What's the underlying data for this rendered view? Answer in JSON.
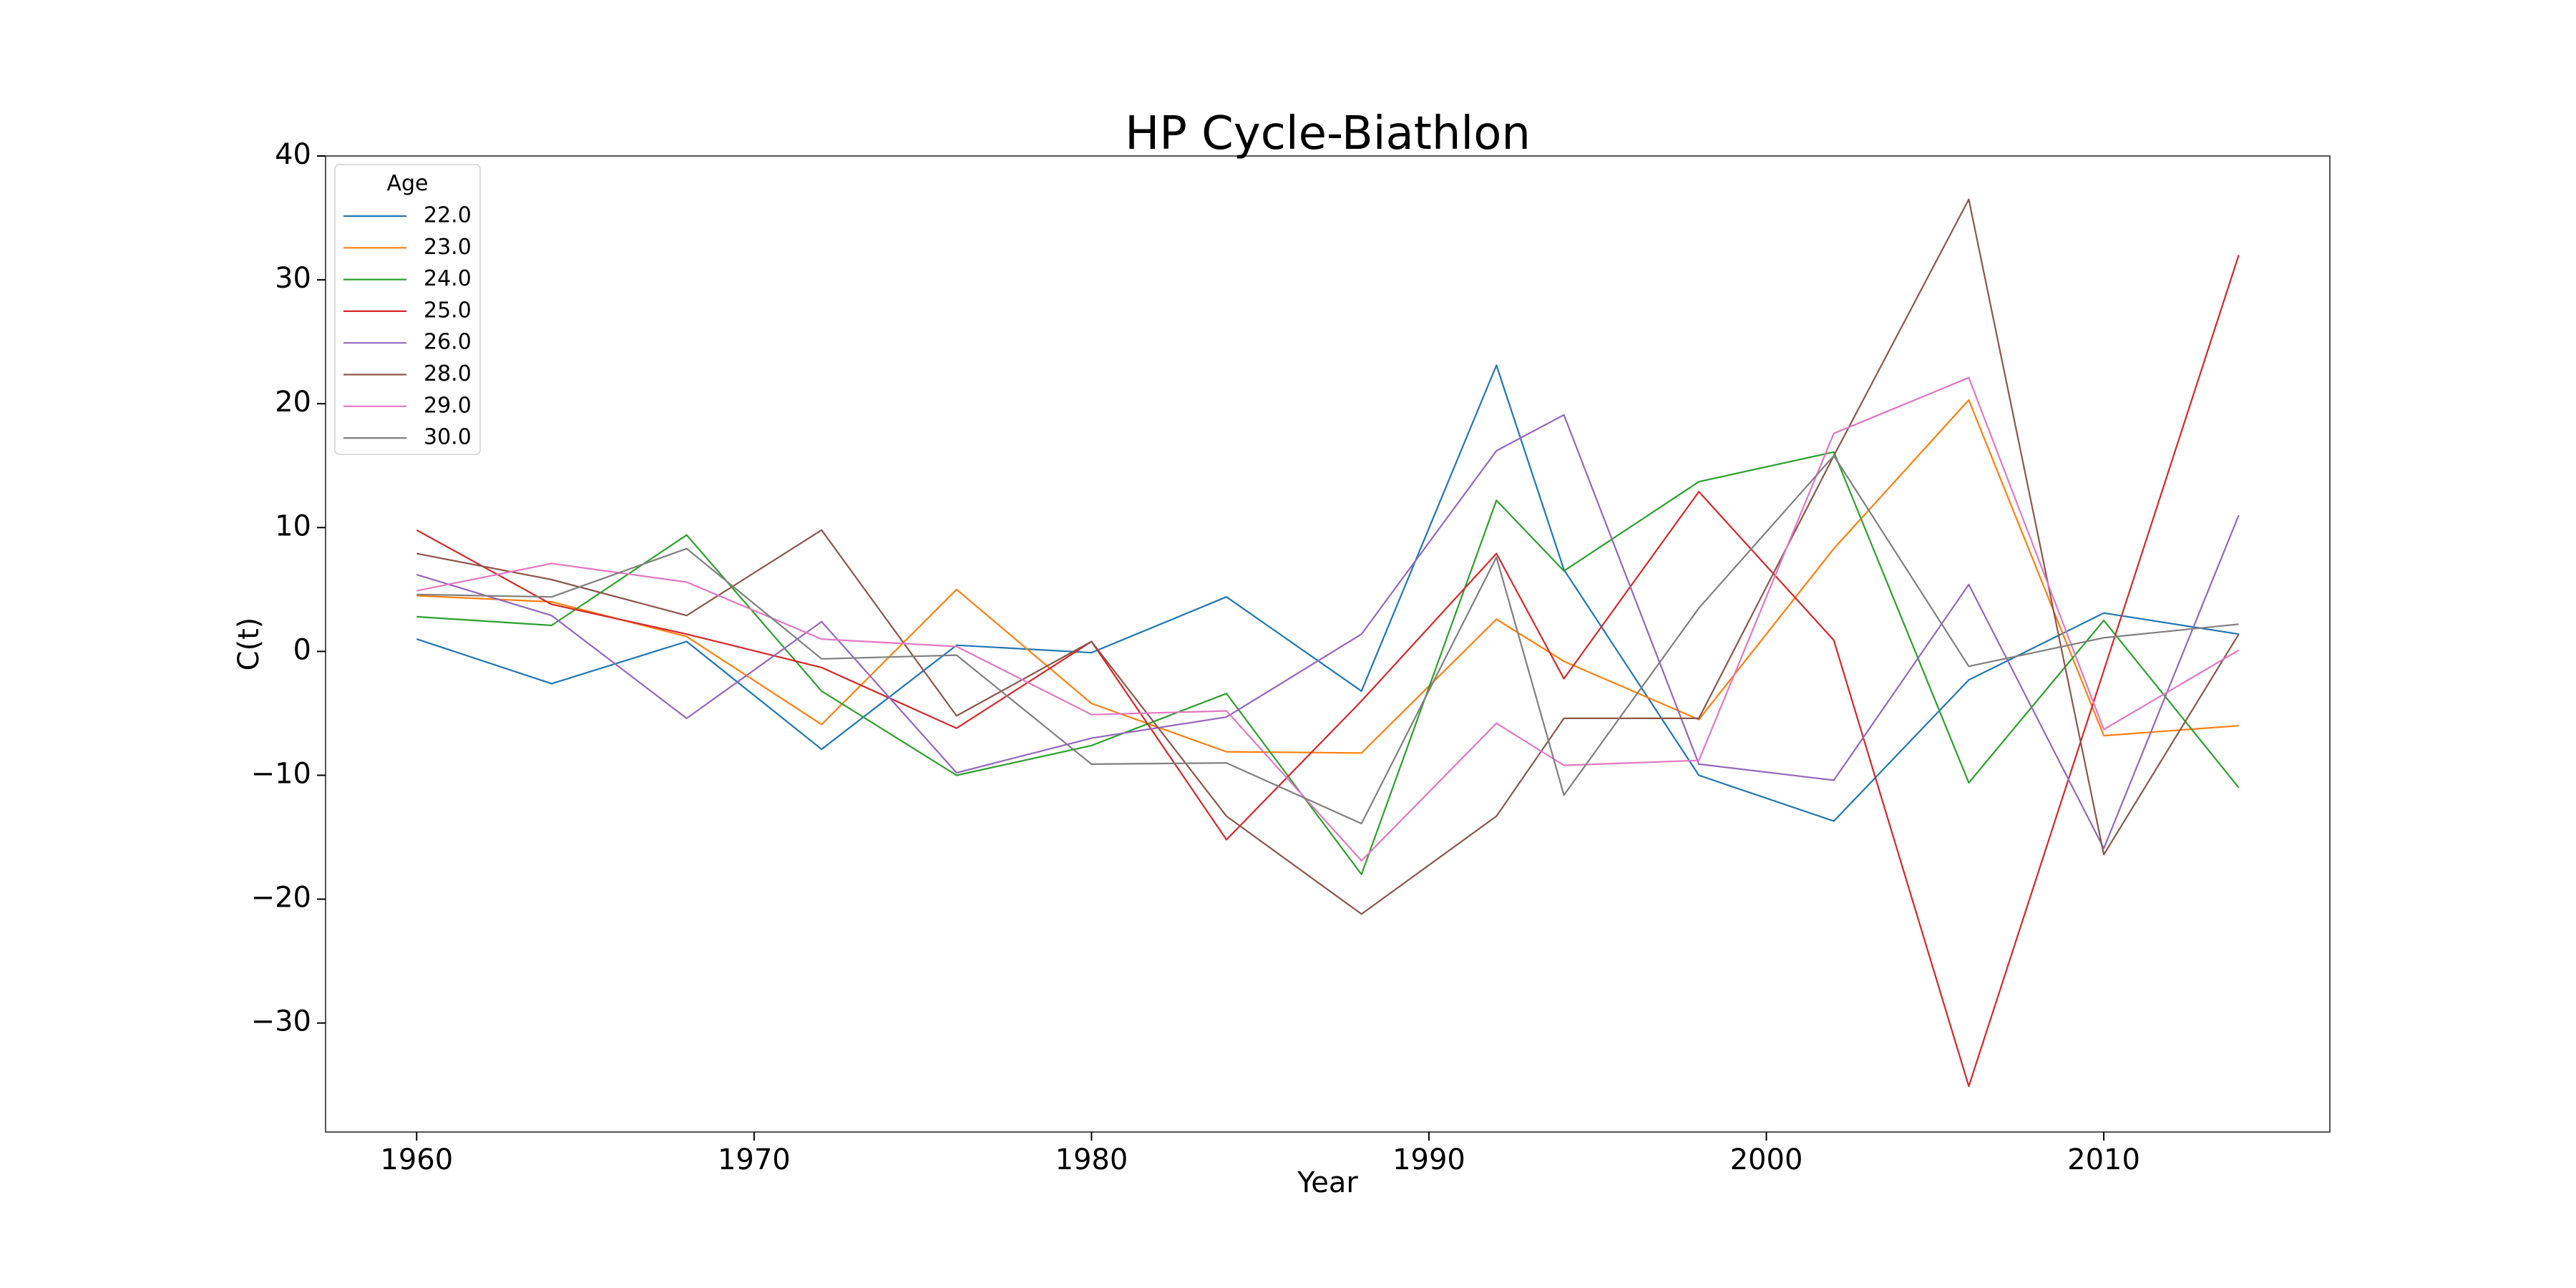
{
  "chart_data": {
    "type": "line",
    "title": "HP Cycle-Biathlon",
    "xlabel": "Year",
    "ylabel": "C(t)",
    "xlim": [
      1957.3,
      2016.7
    ],
    "ylim": [
      -38.8,
      40
    ],
    "xticks": [
      1960,
      1970,
      1980,
      1990,
      2000,
      2010
    ],
    "yticks": [
      -30,
      -20,
      -10,
      0,
      10,
      20,
      30,
      40
    ],
    "ytick_labels": [
      "−30",
      "−20",
      "−10",
      "0",
      "10",
      "20",
      "30",
      "40"
    ],
    "grid": false,
    "legend": {
      "title": "Age",
      "position": "top-left"
    },
    "series": [
      {
        "name": "22.0",
        "color": "#1f77b4",
        "x": [
          1960,
          1964,
          1968,
          1972,
          1976,
          1980,
          1984,
          1988,
          1992,
          1994,
          1998,
          2002,
          2006,
          2010,
          2014
        ],
        "y": [
          1.0,
          -2.6,
          0.8,
          -7.9,
          0.5,
          -0.1,
          4.4,
          -3.2,
          23.1,
          6.6,
          -10.0,
          -13.7,
          -2.3,
          3.1,
          1.4
        ]
      },
      {
        "name": "23.0",
        "color": "#ff7f0e",
        "x": [
          1960,
          1964,
          1968,
          1972,
          1976,
          1980,
          1984,
          1988,
          1992,
          1994,
          1998,
          2002,
          2006,
          2010,
          2014
        ],
        "y": [
          4.5,
          4.0,
          1.2,
          -5.9,
          5.0,
          -4.2,
          -8.1,
          -8.2,
          2.6,
          -0.8,
          -5.5,
          8.3,
          20.3,
          -6.8,
          -6.0
        ]
      },
      {
        "name": "24.0",
        "color": "#2ca02c",
        "x": [
          1960,
          1964,
          1968,
          1972,
          1976,
          1980,
          1984,
          1988,
          1992,
          1994,
          1998,
          2002,
          2006,
          2010,
          2014
        ],
        "y": [
          2.8,
          2.1,
          9.4,
          -3.2,
          -10.0,
          -7.6,
          -3.4,
          -18.0,
          12.2,
          6.5,
          13.7,
          16.1,
          -10.6,
          2.5,
          -11.0
        ]
      },
      {
        "name": "25.0",
        "color": "#d62728",
        "x": [
          1960,
          1964,
          1968,
          1972,
          1976,
          1980,
          1984,
          1988,
          1992,
          1994,
          1998,
          2002,
          2006,
          2014
        ],
        "y": [
          9.8,
          3.8,
          1.4,
          -1.3,
          -6.2,
          0.8,
          -15.2,
          -4.0,
          7.9,
          -2.2,
          12.9,
          0.9,
          -35.1,
          32.0
        ]
      },
      {
        "name": "26.0",
        "color": "#9467bd",
        "x": [
          1960,
          1964,
          1968,
          1972,
          1976,
          1980,
          1984,
          1988,
          1992,
          1994,
          1998,
          2002,
          2006,
          2010,
          2014
        ],
        "y": [
          6.2,
          2.9,
          -5.4,
          2.4,
          -9.8,
          -7.0,
          -5.3,
          1.4,
          16.2,
          19.1,
          -9.1,
          -10.4,
          5.4,
          -15.9,
          11.0
        ]
      },
      {
        "name": "28.0",
        "color": "#8c564b",
        "x": [
          1960,
          1964,
          1968,
          1972,
          1976,
          1980,
          1984,
          1988,
          1992,
          1994,
          1998,
          2002,
          2006,
          2010,
          2014
        ],
        "y": [
          7.9,
          5.8,
          2.9,
          9.8,
          -5.2,
          0.8,
          -13.3,
          -21.2,
          -13.3,
          -5.4,
          -5.4,
          15.8,
          36.5,
          -16.4,
          1.4
        ]
      },
      {
        "name": "29.0",
        "color": "#e377c2",
        "x": [
          1960,
          1964,
          1968,
          1972,
          1976,
          1980,
          1984,
          1988,
          1992,
          1994,
          1998,
          2002,
          2006,
          2010,
          2014
        ],
        "y": [
          4.9,
          7.1,
          5.6,
          1.0,
          0.4,
          -5.1,
          -4.8,
          -16.9,
          -5.8,
          -9.2,
          -8.8,
          17.6,
          22.1,
          -6.3,
          0.1
        ]
      },
      {
        "name": "30.0",
        "color": "#7f7f7f",
        "x": [
          1960,
          1964,
          1968,
          1972,
          1976,
          1980,
          1984,
          1988,
          1992,
          1994,
          1998,
          2002,
          2006,
          2010,
          2014
        ],
        "y": [
          4.6,
          4.4,
          8.3,
          -0.6,
          -0.3,
          -9.1,
          -9.0,
          -13.9,
          7.6,
          -11.6,
          3.5,
          15.8,
          -1.2,
          1.1,
          2.2
        ]
      }
    ]
  }
}
